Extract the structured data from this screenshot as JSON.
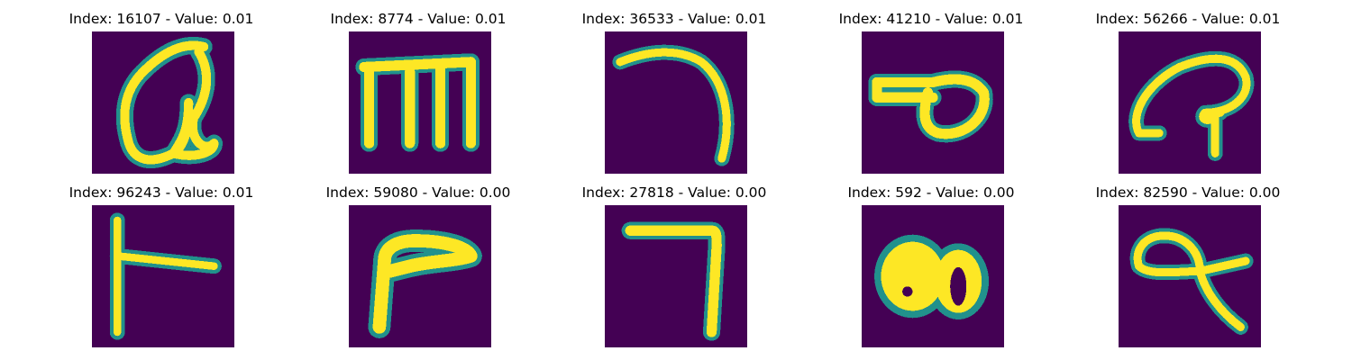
{
  "colors": {
    "background": "#440154",
    "stroke_outer": "#21918c",
    "stroke_inner": "#fde725"
  },
  "panels": [
    {
      "title": "Index: 16107 - Value: 0.01",
      "glyph": "cursive-a-loop-glyph"
    },
    {
      "title": "Index: 8774 - Value: 0.01",
      "glyph": "m-shaped-glyph"
    },
    {
      "title": "Index: 36533 - Value: 0.01",
      "glyph": "hook-stroke-glyph"
    },
    {
      "title": "Index: 41210 - Value: 0.01",
      "glyph": "flag-loop-glyph"
    },
    {
      "title": "Index: 56266 - Value: 0.01",
      "glyph": "curl-hook-glyph"
    },
    {
      "title": "Index: 96243 - Value: 0.01",
      "glyph": "t-cross-glyph"
    },
    {
      "title": "Index: 59080 - Value: 0.00",
      "glyph": "bent-corner-glyph"
    },
    {
      "title": "Index: 27818 - Value: 0.00",
      "glyph": "right-angle-glyph"
    },
    {
      "title": "Index: 592 - Value: 0.00",
      "glyph": "double-oval-glyph"
    },
    {
      "title": "Index: 82590 - Value: 0.00",
      "glyph": "loop-tail-glyph"
    }
  ]
}
